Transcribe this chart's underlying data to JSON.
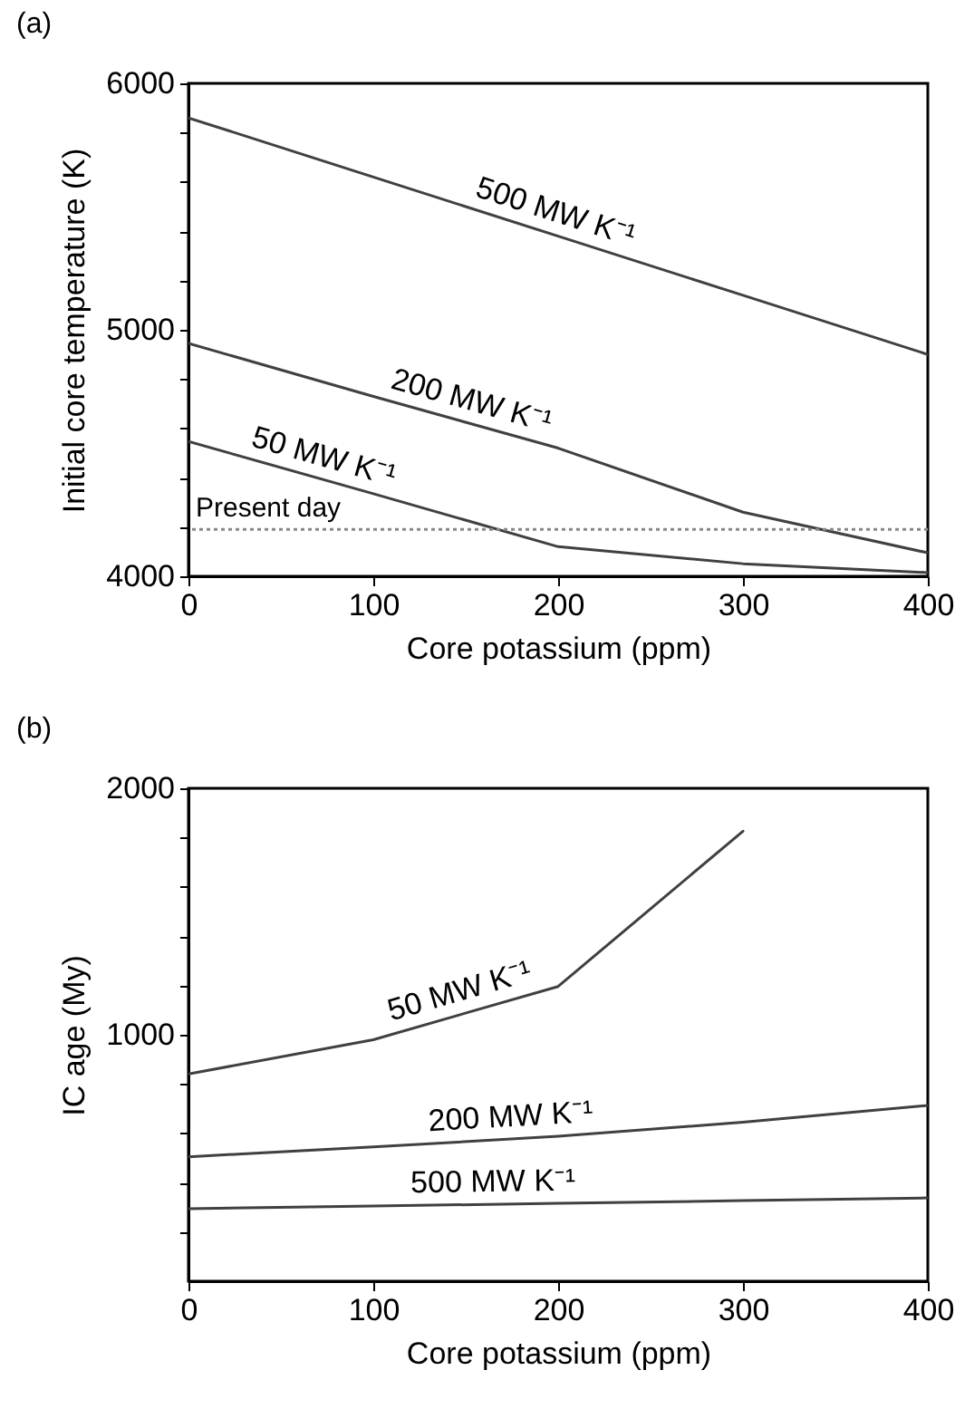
{
  "chart_data": [
    {
      "type": "line",
      "title": "(a)",
      "xlabel": "Core potassium (ppm)",
      "ylabel": "Initial core temperature (K)",
      "xlim": [
        0,
        400
      ],
      "ylim": [
        4000,
        6000
      ],
      "xticks": [
        0,
        100,
        200,
        300,
        400
      ],
      "yticks": [
        4000,
        {
          "value": 4200,
          "label": null
        },
        {
          "value": 4400,
          "label": null
        },
        {
          "value": 4600,
          "label": null
        },
        {
          "value": 4800,
          "label": null
        },
        5000,
        {
          "value": 5200,
          "label": null
        },
        {
          "value": 5400,
          "label": null
        },
        {
          "value": 5600,
          "label": null
        },
        {
          "value": 5800,
          "label": null
        },
        6000
      ],
      "x": [
        0,
        100,
        200,
        300,
        400
      ],
      "series": [
        {
          "color": "#404040",
          "values": [
            5860,
            5620,
            5380,
            5140,
            4900
          ]
        },
        {
          "color": "#404040",
          "values": [
            4945,
            4730,
            4520,
            4260,
            4095
          ]
        },
        {
          "color": "#404040",
          "values": [
            4547,
            4335,
            4120,
            4051,
            4015
          ]
        }
      ],
      "ref_lines": [
        {
          "axis": "y",
          "value": 4190,
          "label": "Present day",
          "color": "#888888",
          "line_style": "dotted"
        }
      ],
      "annotations": [
        {
          "text": "500 MW K⁻¹",
          "x": 195,
          "y": 5392
        },
        {
          "text": "200 MW K⁻¹",
          "x": 150,
          "y": 4625
        },
        {
          "text": "50 MW K⁻¹",
          "x": 70,
          "y": 4398
        }
      ],
      "grid": false
    },
    {
      "type": "line",
      "title": "(b)",
      "xlabel": "Core potassium (ppm)",
      "ylabel": "IC age (My)",
      "xlim": [
        0,
        400
      ],
      "ylim": [
        0,
        2000
      ],
      "xticks": [
        0,
        100,
        200,
        300,
        400
      ],
      "yticks": [
        {
          "value": 200,
          "label": null
        },
        {
          "value": 400,
          "label": null
        },
        {
          "value": 600,
          "label": null
        },
        {
          "value": 800,
          "label": null
        },
        1000,
        {
          "value": 1200,
          "label": null
        },
        {
          "value": 1400,
          "label": null
        },
        {
          "value": 1600,
          "label": null
        },
        {
          "value": 1800,
          "label": null
        },
        2000
      ],
      "x": [
        0,
        100,
        200,
        300,
        400
      ],
      "series": [
        {
          "color": "#404040",
          "values": [
            841,
            980,
            1196,
            1826,
            null
          ]
        },
        {
          "color": "#404040",
          "values": [
            505,
            545,
            588,
            645,
            713
          ]
        },
        {
          "color": "#404040",
          "values": [
            294,
            305,
            316,
            327,
            338
          ]
        }
      ],
      "annotations": [
        {
          "text": "50 MW K⁻¹",
          "x": 150,
          "y": 1090
        },
        {
          "text": "200 MW K⁻¹",
          "x": 175,
          "y": 577
        },
        {
          "text": "500 MW K⁻¹",
          "x": 165,
          "y": 313
        }
      ],
      "grid": false
    }
  ]
}
